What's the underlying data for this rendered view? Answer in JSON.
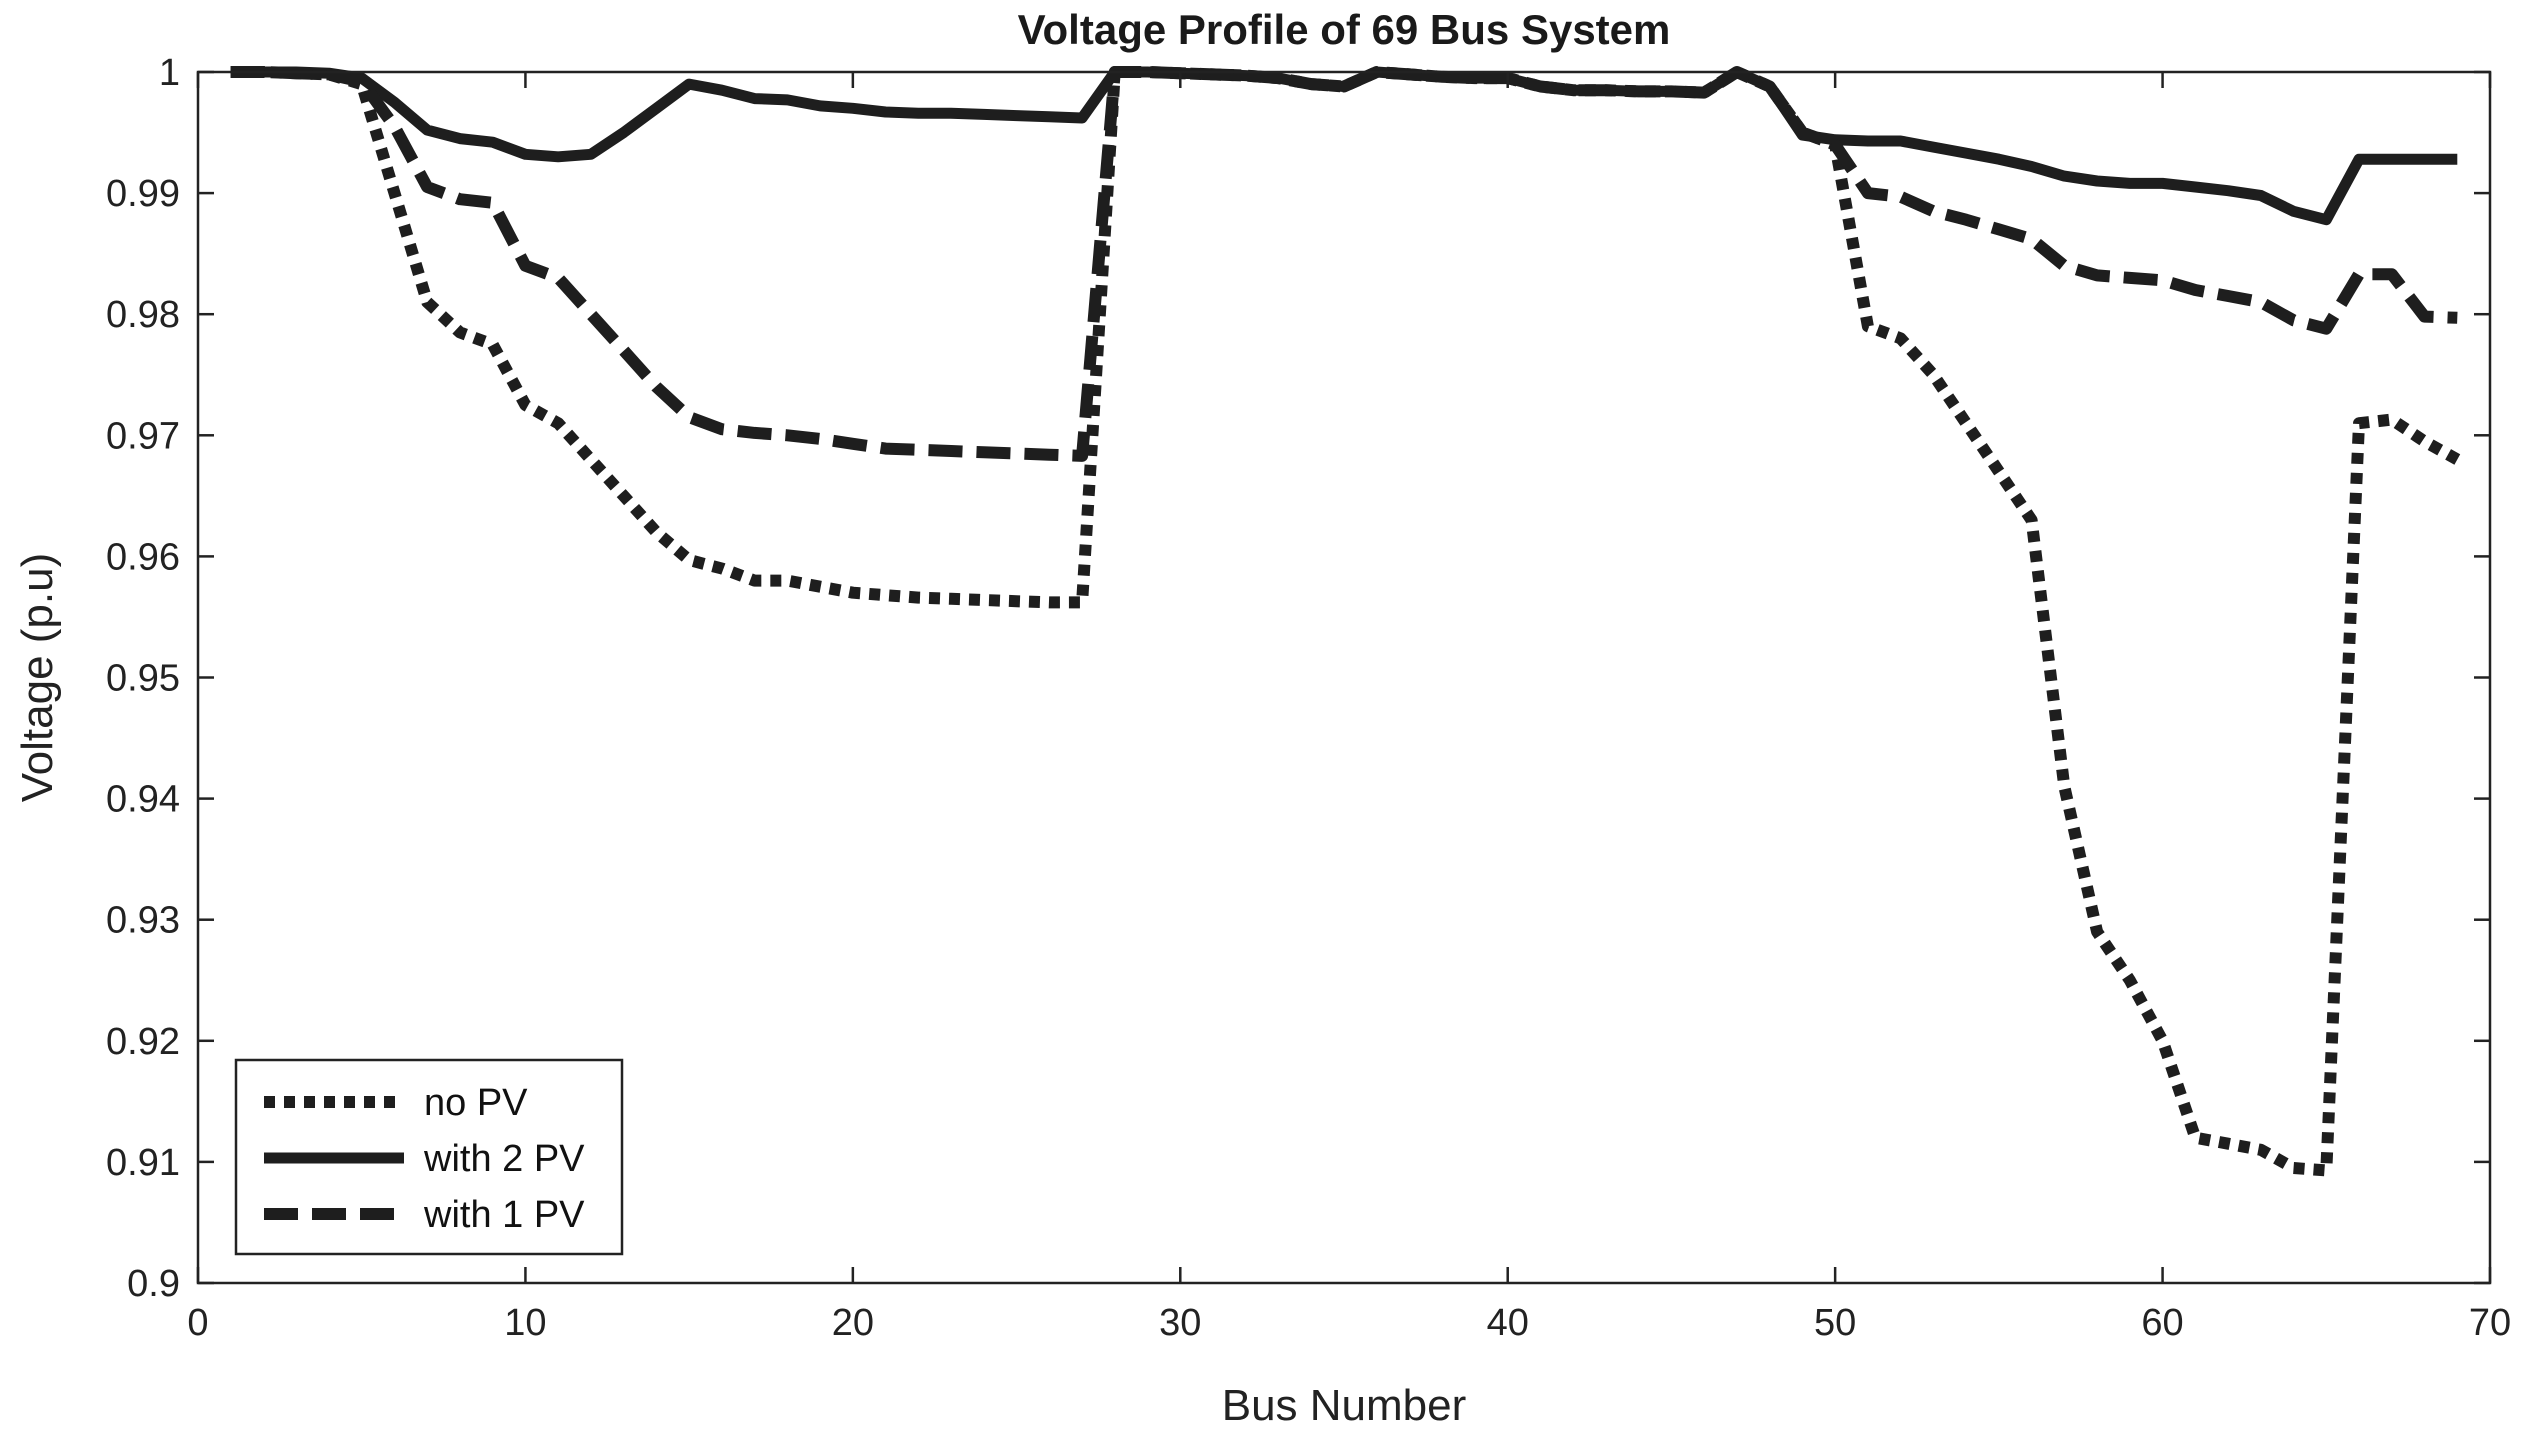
{
  "chart_data": {
    "type": "line",
    "title": "Voltage Profile of 69 Bus System",
    "xlabel": "Bus Number",
    "ylabel": "Voltage (p.u)",
    "xlim": [
      0,
      70
    ],
    "ylim": [
      0.9,
      1.0
    ],
    "xticks": [
      0,
      10,
      20,
      30,
      40,
      50,
      60,
      70
    ],
    "xtick_labels": [
      "0",
      "10",
      "20",
      "30",
      "40",
      "50",
      "60",
      "70"
    ],
    "yticks": [
      0.9,
      0.91,
      0.92,
      0.93,
      0.94,
      0.95,
      0.96,
      0.97,
      0.98,
      0.99,
      1.0
    ],
    "ytick_labels": [
      "0.9",
      "0.91",
      "0.92",
      "0.93",
      "0.94",
      "0.95",
      "0.96",
      "0.97",
      "0.98",
      "0.99",
      "1"
    ],
    "grid": false,
    "legend_position": "bottom-left",
    "line_color": "#1e1e1e",
    "x": [
      1,
      2,
      3,
      4,
      5,
      6,
      7,
      8,
      9,
      10,
      11,
      12,
      13,
      14,
      15,
      16,
      17,
      18,
      19,
      20,
      21,
      22,
      23,
      24,
      25,
      26,
      27,
      28,
      29,
      30,
      31,
      32,
      33,
      34,
      35,
      36,
      37,
      38,
      39,
      40,
      41,
      42,
      43,
      44,
      45,
      46,
      47,
      48,
      49,
      50,
      51,
      52,
      53,
      54,
      55,
      56,
      57,
      58,
      59,
      60,
      61,
      62,
      63,
      64,
      65,
      66,
      67,
      68,
      69
    ],
    "series": [
      {
        "name": "no PV",
        "style": "dotted",
        "values": [
          1.0,
          1.0,
          0.9999,
          0.9998,
          0.999,
          0.99,
          0.981,
          0.9785,
          0.9775,
          0.9725,
          0.971,
          0.968,
          0.965,
          0.962,
          0.9597,
          0.959,
          0.958,
          0.958,
          0.9575,
          0.957,
          0.9568,
          0.9566,
          0.9565,
          0.9564,
          0.9563,
          0.9562,
          0.9562,
          1.0,
          1.0,
          0.9999,
          0.9998,
          0.9997,
          0.9995,
          0.999,
          0.9988,
          1.0,
          0.9998,
          0.9996,
          0.9995,
          0.9995,
          0.9988,
          0.9985,
          0.9985,
          0.9984,
          0.9984,
          0.9983,
          1.0,
          0.9988,
          0.995,
          0.994,
          0.979,
          0.978,
          0.975,
          0.971,
          0.967,
          0.963,
          0.941,
          0.929,
          0.925,
          0.92,
          0.912,
          0.9115,
          0.911,
          0.9095,
          0.9093,
          0.971,
          0.9713,
          0.9695,
          0.968
        ]
      },
      {
        "name": "with 2 PV",
        "style": "solid",
        "values": [
          1.0,
          1.0,
          1.0,
          0.9999,
          0.9995,
          0.9975,
          0.9952,
          0.9945,
          0.9942,
          0.9932,
          0.993,
          0.9932,
          0.995,
          0.997,
          0.999,
          0.9985,
          0.9978,
          0.9977,
          0.9972,
          0.997,
          0.9967,
          0.9966,
          0.9966,
          0.9965,
          0.9964,
          0.9963,
          0.9962,
          1.0,
          1.0,
          0.9999,
          0.9998,
          0.9997,
          0.9995,
          0.999,
          0.9988,
          1.0,
          0.9998,
          0.9996,
          0.9995,
          0.9995,
          0.9988,
          0.9985,
          0.9985,
          0.9984,
          0.9984,
          0.9983,
          1.0,
          0.9988,
          0.9948,
          0.9944,
          0.9943,
          0.9943,
          0.9938,
          0.9933,
          0.9928,
          0.9922,
          0.9914,
          0.991,
          0.9908,
          0.9908,
          0.9905,
          0.9902,
          0.9898,
          0.9885,
          0.9878,
          0.9928,
          0.9928,
          0.9928,
          0.9928
        ]
      },
      {
        "name": "with 1 PV",
        "style": "dashed",
        "values": [
          1.0,
          1.0,
          0.9999,
          0.9998,
          0.9992,
          0.9955,
          0.9905,
          0.9895,
          0.9892,
          0.984,
          0.983,
          0.98,
          0.977,
          0.974,
          0.9715,
          0.9705,
          0.9702,
          0.97,
          0.9697,
          0.9693,
          0.9689,
          0.9688,
          0.9687,
          0.9686,
          0.9685,
          0.9684,
          0.9683,
          1.0,
          1.0,
          0.9999,
          0.9998,
          0.9997,
          0.9995,
          0.999,
          0.9988,
          1.0,
          0.9998,
          0.9996,
          0.9995,
          0.9995,
          0.9988,
          0.9985,
          0.9985,
          0.9984,
          0.9984,
          0.9983,
          1.0,
          0.9988,
          0.995,
          0.994,
          0.99,
          0.9897,
          0.9885,
          0.9878,
          0.987,
          0.9862,
          0.984,
          0.9832,
          0.983,
          0.9828,
          0.982,
          0.9815,
          0.981,
          0.9795,
          0.9788,
          0.9833,
          0.9833,
          0.9798,
          0.9797
        ]
      }
    ]
  }
}
